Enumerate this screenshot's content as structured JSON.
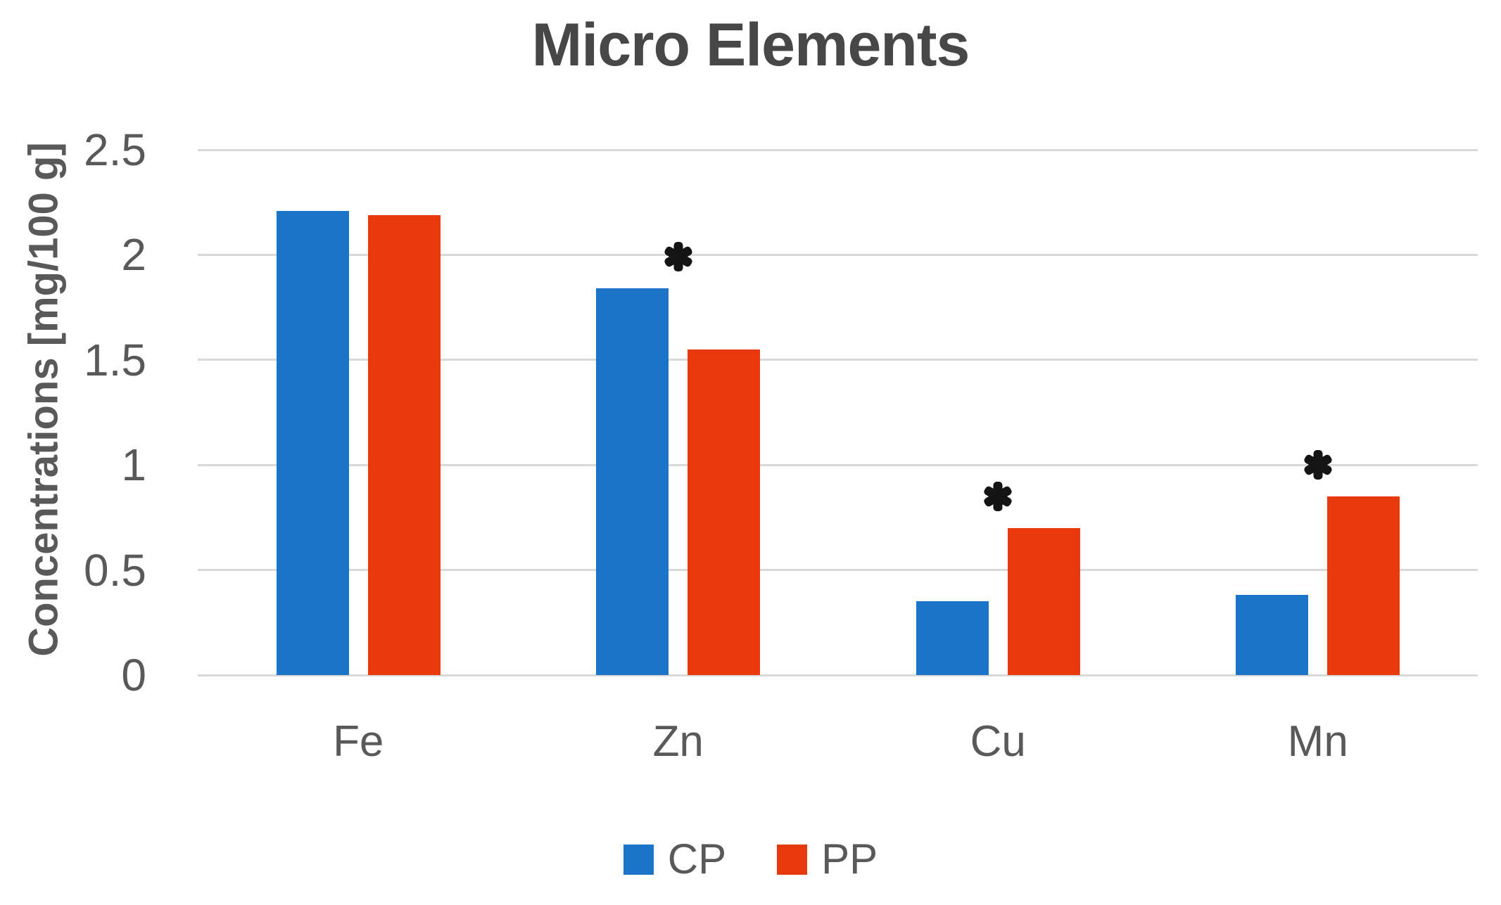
{
  "chart_data": {
    "type": "bar",
    "title": "Micro Elements",
    "xlabel": "",
    "ylabel": "Concentrations [mg/100 g]",
    "categories": [
      "Fe",
      "Zn",
      "Cu",
      "Mn"
    ],
    "series": [
      {
        "name": "CP",
        "color": "#1B74C8",
        "values": [
          2.21,
          1.84,
          0.35,
          0.38
        ]
      },
      {
        "name": "PP",
        "color": "#E8390D",
        "values": [
          2.19,
          1.55,
          0.7,
          0.85
        ]
      }
    ],
    "ylim": [
      0,
      2.5
    ],
    "ytick_step": 0.5,
    "ytick_labels": [
      "0",
      "0.5",
      "1",
      "1.5",
      "2",
      "2.5"
    ],
    "grid": true,
    "legend_position": "bottom",
    "legend_entries": [
      "CP",
      "PP"
    ],
    "annotations": [
      {
        "category": "Zn",
        "series": "CP",
        "symbol": "*"
      },
      {
        "category": "Cu",
        "series": "PP",
        "symbol": "*"
      },
      {
        "category": "Mn",
        "series": "PP",
        "symbol": "*"
      }
    ]
  },
  "colors": {
    "background": "#FFFFFF",
    "gridline": "#D9D9D9",
    "axis_text": "#595959",
    "title_text": "#474747",
    "annotation": "#141414",
    "cp_blue": "#1B74C8",
    "pp_red": "#E8390D"
  }
}
